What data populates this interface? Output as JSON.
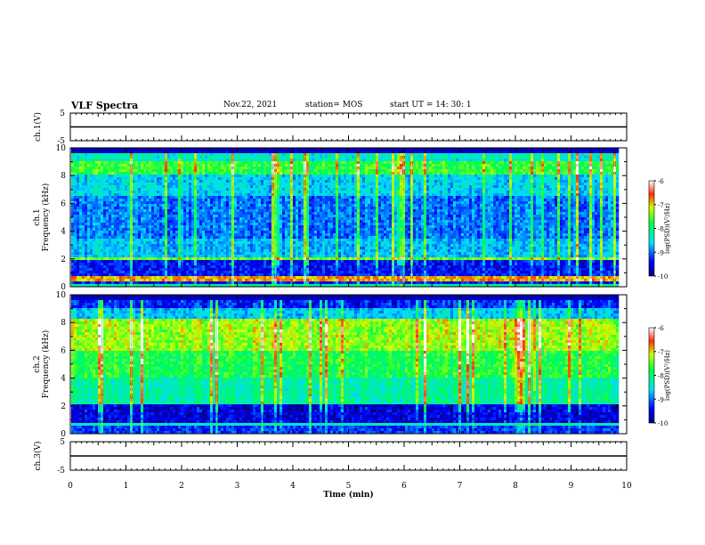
{
  "header": {
    "title": "VLF Spectra",
    "date": "Nov.22, 2021",
    "station": "station= MOS",
    "start": "start  UT  =   14: 30: 1"
  },
  "chart_data": [
    {
      "type": "line",
      "panel": "ch1-waveform",
      "ylabel": "ch.1(V)",
      "ylim": [
        -5,
        5
      ],
      "yticks": [
        "5",
        "-5"
      ],
      "x": [
        0,
        10
      ],
      "y": [
        0,
        0
      ],
      "xlim": [
        0,
        10
      ]
    },
    {
      "type": "heatmap",
      "panel": "ch1-spectrogram",
      "ylabel_lines": [
        "ch.1",
        "Frequency (kHz)"
      ],
      "ylim": [
        0,
        10
      ],
      "yticks": [
        "0",
        "2",
        "4",
        "6",
        "8",
        "10"
      ],
      "xlim": [
        0,
        10
      ],
      "data_end_min": 9.85,
      "colorbar": {
        "label": "log(PSD)(V²/Hz)",
        "range": [
          -10,
          -6
        ],
        "ticks": [
          "-6",
          "-7",
          "-8",
          "-9",
          "-10"
        ]
      }
    },
    {
      "type": "heatmap",
      "panel": "ch2-spectrogram",
      "ylabel_lines": [
        "ch.2",
        "Frequency (kHz)"
      ],
      "ylim": [
        0,
        10
      ],
      "yticks": [
        "0",
        "2",
        "4",
        "6",
        "8",
        "10"
      ],
      "xlim": [
        0,
        10
      ],
      "data_end_min": 9.85,
      "colorbar": {
        "label": "log(PSD)(V²/Hz)",
        "range": [
          -10,
          -6
        ],
        "ticks": [
          "-6",
          "-7",
          "-8",
          "-9",
          "-10"
        ]
      }
    },
    {
      "type": "line",
      "panel": "ch3-waveform",
      "ylabel": "ch.3(V)",
      "ylim": [
        -5,
        5
      ],
      "yticks": [
        "5",
        "-5"
      ],
      "x": [
        0,
        10
      ],
      "y": [
        0,
        0
      ],
      "xlim": [
        0,
        10
      ],
      "xlabel": "Time (min)",
      "xticks": [
        "0",
        "1",
        "2",
        "3",
        "4",
        "5",
        "6",
        "7",
        "8",
        "9",
        "10"
      ]
    }
  ]
}
